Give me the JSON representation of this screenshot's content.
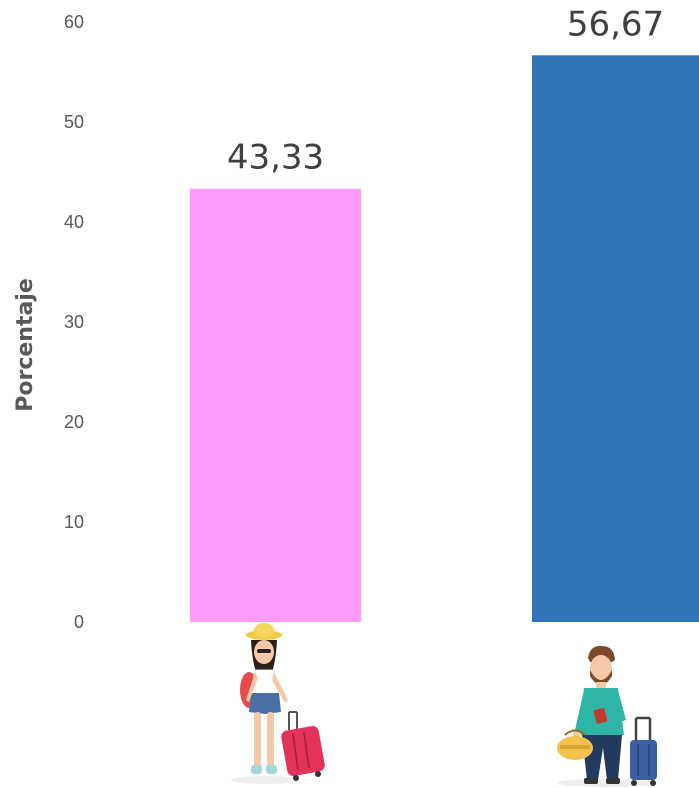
{
  "chart_data": {
    "type": "bar",
    "categories": [
      "mujer",
      "hombre"
    ],
    "values": [
      43.33,
      56.67
    ],
    "value_labels": [
      "43,33",
      "56,67"
    ],
    "colors": [
      "#fb9cfb",
      "#2e75b6"
    ],
    "ylabel": "Porcentaje",
    "ylim": [
      0,
      60
    ],
    "yticks": [
      0,
      10,
      20,
      30,
      40,
      50,
      60
    ],
    "grid": false,
    "category_icons": [
      "woman-traveler-icon",
      "man-traveler-icon"
    ]
  }
}
